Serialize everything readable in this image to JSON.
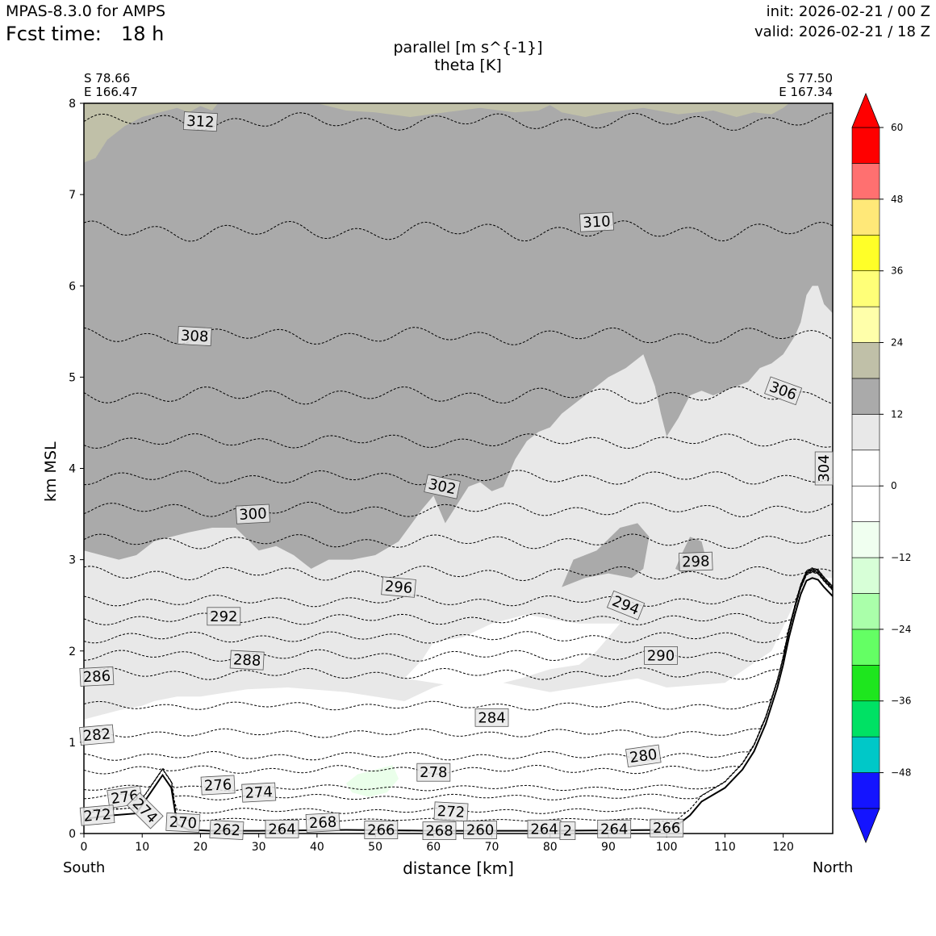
{
  "header": {
    "model": "MPAS-8.3.0 for AMPS",
    "fcst_time_label": "Fcst time:",
    "fcst_time_value": "18 h",
    "init": "init: 2026-02-21 / 00 Z",
    "valid": "valid: 2026-02-21 / 18 Z"
  },
  "chart_data": {
    "type": "cross-section",
    "title_line1": "parallel [m s^{-1}]",
    "title_line2": "theta [K]",
    "start_point": {
      "lat": "S 78.66",
      "lon": "E 166.47"
    },
    "end_point": {
      "lat": "S 77.50",
      "lon": "E 167.34"
    },
    "xlabel": "distance [km]",
    "ylabel": "km MSL",
    "x_left_label": "South",
    "x_right_label": "North",
    "xlim": [
      0,
      128.5
    ],
    "ylim": [
      0,
      8
    ],
    "xticks": [
      0,
      10,
      20,
      30,
      40,
      50,
      60,
      70,
      80,
      90,
      100,
      110,
      120
    ],
    "yticks": [
      0,
      1,
      2,
      3,
      4,
      5,
      6,
      7,
      8
    ],
    "colorbar": {
      "ticks": [
        "60",
        "48",
        "36",
        "24",
        "12",
        "0",
        "−12",
        "−24",
        "−36",
        "−48"
      ],
      "levels": [
        -54,
        -48,
        -42,
        -36,
        -30,
        -24,
        -18,
        -12,
        -6,
        0,
        6,
        12,
        18,
        24,
        30,
        36,
        42,
        48,
        54,
        60
      ],
      "colors": [
        "#1414ff",
        "#00c8c8",
        "#00e164",
        "#1ee61e",
        "#64ff64",
        "#aaffaa",
        "#d7ffd7",
        "#f0fff0",
        "#ffffff",
        "#ffffff",
        "#e8e8e8",
        "#aaaaaa",
        "#c0c0a8",
        "#ffffaa",
        "#ffff78",
        "#ffff28",
        "#ffe878",
        "#ff7070",
        "#ff0000"
      ],
      "under_color": "#1414ff",
      "over_color": "#ff0000"
    },
    "terrain": {
      "x": [
        0,
        5,
        9,
        12,
        13.5,
        15,
        16,
        18,
        22,
        30,
        45,
        60,
        80,
        100,
        102,
        104,
        106,
        110,
        113,
        115,
        117,
        119,
        120,
        121,
        122,
        123,
        124,
        125,
        126,
        127,
        128.5
      ],
      "z": [
        0.16,
        0.2,
        0.22,
        0.5,
        0.64,
        0.5,
        0.1,
        0.04,
        0.03,
        0.03,
        0.04,
        0.03,
        0.03,
        0.04,
        0.1,
        0.2,
        0.35,
        0.5,
        0.7,
        0.9,
        1.2,
        1.6,
        1.85,
        2.15,
        2.4,
        2.62,
        2.77,
        2.8,
        2.78,
        2.7,
        2.6
      ]
    },
    "shaded_regions": [
      {
        "name": "parallel 6-12",
        "color": "#e8e8e8",
        "x": [
          0,
          3,
          6,
          10,
          12,
          16,
          20,
          28,
          35,
          45,
          55,
          60,
          65,
          72,
          80,
          90,
          95,
          100,
          110,
          118,
          124,
          128.5,
          128.5,
          0
        ],
        "y": [
          1.25,
          1.3,
          1.35,
          1.4,
          1.45,
          1.5,
          1.5,
          1.58,
          1.6,
          1.55,
          1.45,
          1.6,
          1.7,
          1.65,
          1.55,
          1.65,
          1.7,
          1.6,
          1.65,
          2.0,
          2.8,
          2.8,
          8,
          8
        ]
      },
      {
        "name": "white interior",
        "color": "#ffffff",
        "x": [
          55,
          60,
          65,
          70,
          75,
          80,
          85,
          88,
          92,
          85,
          80,
          76,
          70,
          65,
          60,
          58,
          55
        ],
        "y": [
          1.7,
          1.65,
          1.6,
          1.62,
          1.7,
          1.8,
          1.85,
          2.0,
          2.3,
          2.3,
          2.35,
          2.4,
          2.3,
          2.15,
          2.1,
          1.9,
          1.7
        ]
      },
      {
        "name": "parallel 12-18",
        "color": "#aaaaaa",
        "x": [
          0,
          3,
          6,
          9,
          12,
          15,
          18,
          22,
          26,
          30,
          33,
          36,
          39,
          42,
          46,
          50,
          54,
          58,
          60,
          62,
          64,
          66,
          68,
          69,
          70,
          72,
          74,
          76,
          78,
          80,
          82,
          85,
          88,
          90,
          93,
          96,
          98,
          99,
          100,
          102,
          104,
          106,
          108,
          110,
          112,
          114,
          116,
          118,
          120,
          122,
          123,
          124,
          125,
          126,
          127,
          128.5,
          128.5,
          0
        ],
        "y": [
          3.1,
          3.05,
          3.0,
          3.05,
          3.2,
          3.25,
          3.3,
          3.35,
          3.35,
          3.1,
          3.15,
          3.05,
          2.9,
          3.0,
          3.0,
          3.05,
          3.2,
          3.55,
          3.7,
          3.4,
          3.6,
          3.8,
          3.85,
          3.8,
          3.75,
          3.8,
          4.1,
          4.3,
          4.4,
          4.45,
          4.6,
          4.75,
          4.9,
          5.0,
          5.1,
          5.25,
          4.9,
          4.6,
          4.35,
          4.55,
          4.8,
          4.85,
          4.8,
          4.85,
          4.9,
          4.95,
          5.1,
          5.15,
          5.25,
          5.45,
          5.6,
          5.9,
          6.0,
          6.0,
          5.8,
          5.7,
          8,
          8
        ]
      },
      {
        "name": "parallel 12-18 blob",
        "color": "#aaaaaa",
        "x": [
          82,
          86,
          90,
          94,
          96,
          97,
          95,
          92,
          88,
          84,
          82
        ],
        "y": [
          2.7,
          2.8,
          2.85,
          2.8,
          2.9,
          3.25,
          3.4,
          3.35,
          3.1,
          3.0,
          2.7
        ]
      },
      {
        "name": "parallel 12-18 blob 2",
        "color": "#aaaaaa",
        "x": [
          101.5,
          103,
          105,
          107,
          106,
          104,
          102.5,
          101.5
        ],
        "y": [
          2.9,
          2.85,
          2.9,
          2.95,
          3.2,
          3.25,
          3.05,
          2.9
        ]
      },
      {
        "name": "parallel 18-24 left",
        "color": "#c0c0a8",
        "x": [
          0,
          2,
          4,
          7,
          10,
          13,
          16,
          18,
          20,
          22,
          23,
          0
        ],
        "y": [
          7.35,
          7.4,
          7.6,
          7.75,
          7.85,
          7.9,
          7.95,
          7.9,
          7.97,
          7.92,
          8,
          8
        ]
      },
      {
        "name": "parallel 18-24 right",
        "color": "#c0c0a8",
        "x": [
          40,
          45,
          50,
          56,
          62,
          68,
          74,
          78,
          80,
          82,
          86,
          90,
          96,
          102,
          108,
          112,
          115,
          118,
          120,
          121,
          40
        ],
        "y": [
          8,
          7.92,
          7.9,
          7.85,
          7.9,
          7.95,
          7.9,
          7.92,
          7.98,
          7.9,
          7.85,
          7.9,
          7.95,
          7.88,
          7.92,
          7.85,
          7.9,
          7.88,
          7.95,
          8,
          8
        ]
      },
      {
        "name": "parallel negative",
        "color": "#eaffea",
        "x": [
          45,
          47,
          50,
          53,
          54,
          52,
          49,
          46,
          45
        ],
        "y": [
          0.55,
          0.65,
          0.7,
          0.75,
          0.6,
          0.45,
          0.4,
          0.45,
          0.55
        ]
      }
    ],
    "theta_contours": [
      {
        "level": 312,
        "base": 7.8,
        "amp": 0.06
      },
      {
        "level": 310,
        "base": 6.6,
        "amp": 0.07
      },
      {
        "level": 308,
        "base": 5.45,
        "amp": 0.06
      },
      {
        "level": 306,
        "base": 4.8,
        "amp": 0.06
      },
      {
        "level": 304,
        "base": 4.3,
        "amp": 0.05
      },
      {
        "level": 302,
        "base": 3.9,
        "amp": 0.05
      },
      {
        "level": 300,
        "base": 3.55,
        "amp": 0.05
      },
      {
        "level": 298,
        "base": 3.2,
        "amp": 0.05
      },
      {
        "level": 296,
        "base": 2.85,
        "amp": 0.05
      },
      {
        "level": 294,
        "base": 2.55,
        "amp": 0.04
      },
      {
        "level": 292,
        "base": 2.35,
        "amp": 0.04
      },
      {
        "level": 290,
        "base": 2.15,
        "amp": 0.04
      },
      {
        "level": 288,
        "base": 1.95,
        "amp": 0.04
      },
      {
        "level": 286,
        "base": 1.75,
        "amp": 0.04
      },
      {
        "level": 284,
        "base": 1.4,
        "amp": 0.03
      },
      {
        "level": 282,
        "base": 1.1,
        "amp": 0.03
      },
      {
        "level": 280,
        "base": 0.85,
        "amp": 0.03
      },
      {
        "level": 278,
        "base": 0.7,
        "amp": 0.03
      },
      {
        "level": 276,
        "base": 0.5,
        "amp": 0.02
      },
      {
        "level": 274,
        "base": 0.4,
        "amp": 0.02
      },
      {
        "level": 272,
        "base": 0.25,
        "amp": 0.02
      },
      {
        "level": 270,
        "base": 0.15,
        "amp": 0.01
      }
    ],
    "contour_labels": [
      {
        "text": "312",
        "x": 20,
        "y": 7.8,
        "rot": 3
      },
      {
        "text": "310",
        "x": 88,
        "y": 6.7,
        "rot": -3
      },
      {
        "text": "308",
        "x": 19,
        "y": 5.45,
        "rot": 3
      },
      {
        "text": "306",
        "x": 120,
        "y": 4.85,
        "rot": 20
      },
      {
        "text": "304",
        "x": 127,
        "y": 4.0,
        "rot": -90
      },
      {
        "text": "302",
        "x": 61.5,
        "y": 3.8,
        "rot": 12
      },
      {
        "text": "300",
        "x": 29,
        "y": 3.5,
        "rot": -3
      },
      {
        "text": "298",
        "x": 105,
        "y": 2.98,
        "rot": -2
      },
      {
        "text": "296",
        "x": 54,
        "y": 2.7,
        "rot": 5
      },
      {
        "text": "294",
        "x": 93,
        "y": 2.5,
        "rot": 22
      },
      {
        "text": "292",
        "x": 24,
        "y": 2.38,
        "rot": 0
      },
      {
        "text": "290",
        "x": 99,
        "y": 1.95,
        "rot": 0
      },
      {
        "text": "288",
        "x": 28,
        "y": 1.9,
        "rot": 3
      },
      {
        "text": "286",
        "x": 2.2,
        "y": 1.72,
        "rot": -3
      },
      {
        "text": "284",
        "x": 70,
        "y": 1.27,
        "rot": 0
      },
      {
        "text": "282",
        "x": 2.2,
        "y": 1.08,
        "rot": -5
      },
      {
        "text": "280",
        "x": 96,
        "y": 0.85,
        "rot": -8
      },
      {
        "text": "278",
        "x": 60,
        "y": 0.67,
        "rot": 0
      },
      {
        "text": "276",
        "x": 23,
        "y": 0.53,
        "rot": -3
      },
      {
        "text": "274",
        "x": 30,
        "y": 0.45,
        "rot": -3
      },
      {
        "text": "276",
        "x": 7,
        "y": 0.4,
        "rot": -8
      },
      {
        "text": "274",
        "x": 10.5,
        "y": 0.25,
        "rot": 45
      },
      {
        "text": "272",
        "x": 2.3,
        "y": 0.2,
        "rot": -5
      },
      {
        "text": "272",
        "x": 63,
        "y": 0.24,
        "rot": 3
      },
      {
        "text": "270",
        "x": 17,
        "y": 0.12,
        "rot": 3
      },
      {
        "text": "262",
        "x": 24.5,
        "y": 0.04,
        "rot": 3
      },
      {
        "text": "264",
        "x": 34,
        "y": 0.05,
        "rot": 0
      },
      {
        "text": "268",
        "x": 41,
        "y": 0.12,
        "rot": -3
      },
      {
        "text": "266",
        "x": 51,
        "y": 0.04,
        "rot": 0
      },
      {
        "text": "268",
        "x": 61,
        "y": 0.03,
        "rot": 0
      },
      {
        "text": "260",
        "x": 68,
        "y": 0.04,
        "rot": 0
      },
      {
        "text": "264",
        "x": 79,
        "y": 0.05,
        "rot": 0
      },
      {
        "text": "2",
        "x": 83,
        "y": 0.03,
        "rot": 0
      },
      {
        "text": "264",
        "x": 91,
        "y": 0.05,
        "rot": 0
      },
      {
        "text": "266",
        "x": 100,
        "y": 0.06,
        "rot": 0
      }
    ]
  }
}
